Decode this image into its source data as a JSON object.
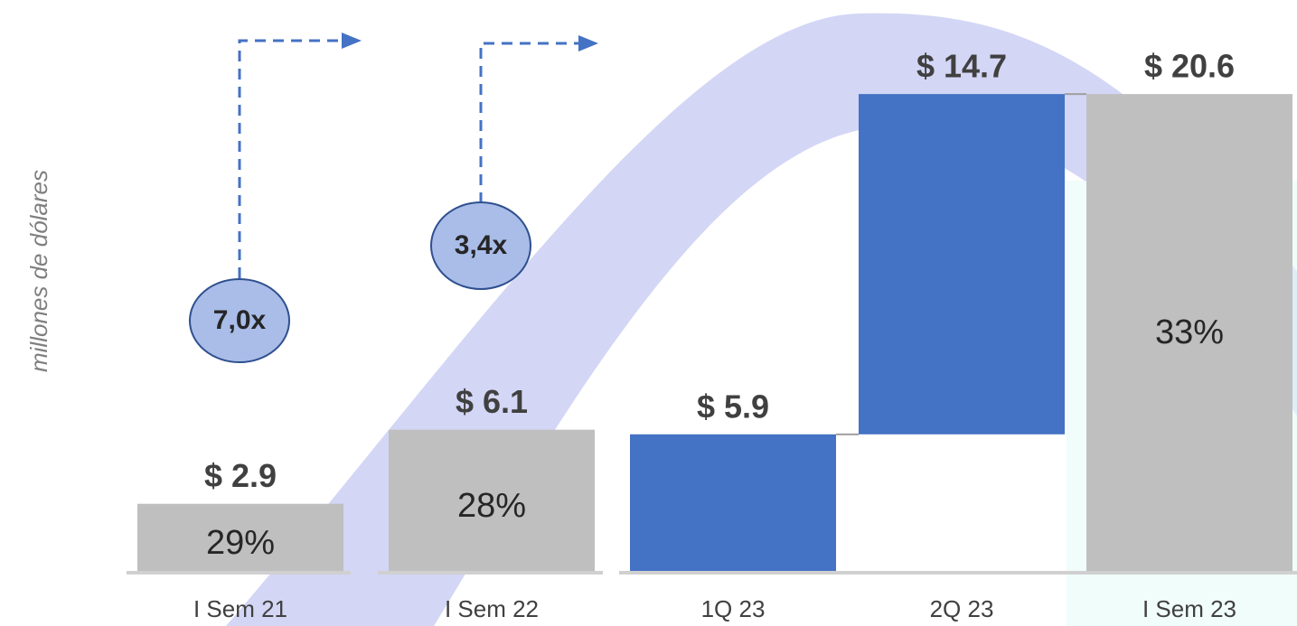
{
  "chart_data": {
    "type": "waterfall",
    "y_axis_label": "millones de dólares",
    "categories": [
      "I Sem 21",
      "I Sem 22",
      "1Q 23",
      "2Q 23",
      "I Sem 23"
    ],
    "values": [
      2.9,
      6.1,
      5.9,
      14.7,
      20.6
    ],
    "value_labels": [
      "$ 2.9",
      "$ 6.1",
      "$ 5.9",
      "$ 14.7",
      "$ 20.6"
    ],
    "inner_labels": [
      "29%",
      "28%",
      null,
      null,
      "33%"
    ],
    "measure": [
      "absolute",
      "absolute",
      "absolute",
      "relative",
      "total"
    ],
    "colors": [
      "#bfbfbf",
      "#bfbfbf",
      "#4472c4",
      "#4472c4",
      "#bfbfbf"
    ],
    "ylim": [
      0,
      24
    ],
    "annotations": [
      "7,0x",
      "3,4x"
    ]
  }
}
